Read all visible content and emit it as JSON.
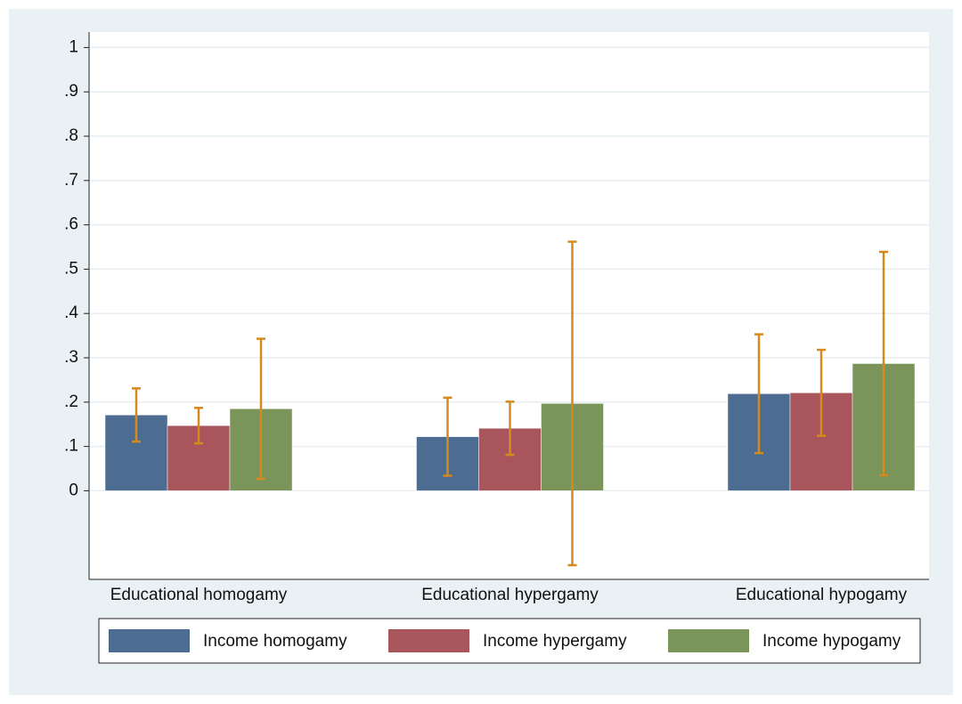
{
  "chart_data": {
    "type": "bar",
    "categories": [
      "Educational homogamy",
      "Educational hypergamy",
      "Educational hypogamy"
    ],
    "series": [
      {
        "name": "Income homogamy",
        "color": "#4d6c91",
        "values": [
          0.171,
          0.122,
          0.219
        ],
        "errors": [
          0.06,
          0.088,
          0.134
        ]
      },
      {
        "name": "Income hypergamy",
        "color": "#a8565b",
        "values": [
          0.147,
          0.141,
          0.221
        ],
        "errors": [
          0.04,
          0.06,
          0.097
        ]
      },
      {
        "name": "Income hypogamy",
        "color": "#7a9459",
        "values": [
          0.185,
          0.197,
          0.287
        ],
        "errors": [
          0.158,
          0.365,
          0.252
        ]
      }
    ],
    "error_color": "#d68a1c",
    "ylim": [
      -0.2,
      1.035
    ],
    "yticks": [
      0,
      {
        "value": 0.1,
        "label": ".1"
      },
      {
        "value": 0.2,
        "label": ".2"
      },
      {
        "value": 0.3,
        "label": ".3"
      },
      {
        "value": 0.4,
        "label": ".4"
      },
      {
        "value": 0.5,
        "label": ".5"
      },
      {
        "value": 0.6,
        "label": ".6"
      },
      {
        "value": 0.7,
        "label": ".7"
      },
      {
        "value": 0.8,
        "label": ".8"
      },
      {
        "value": 0.9,
        "label": ".9"
      },
      1
    ],
    "grid": true
  }
}
